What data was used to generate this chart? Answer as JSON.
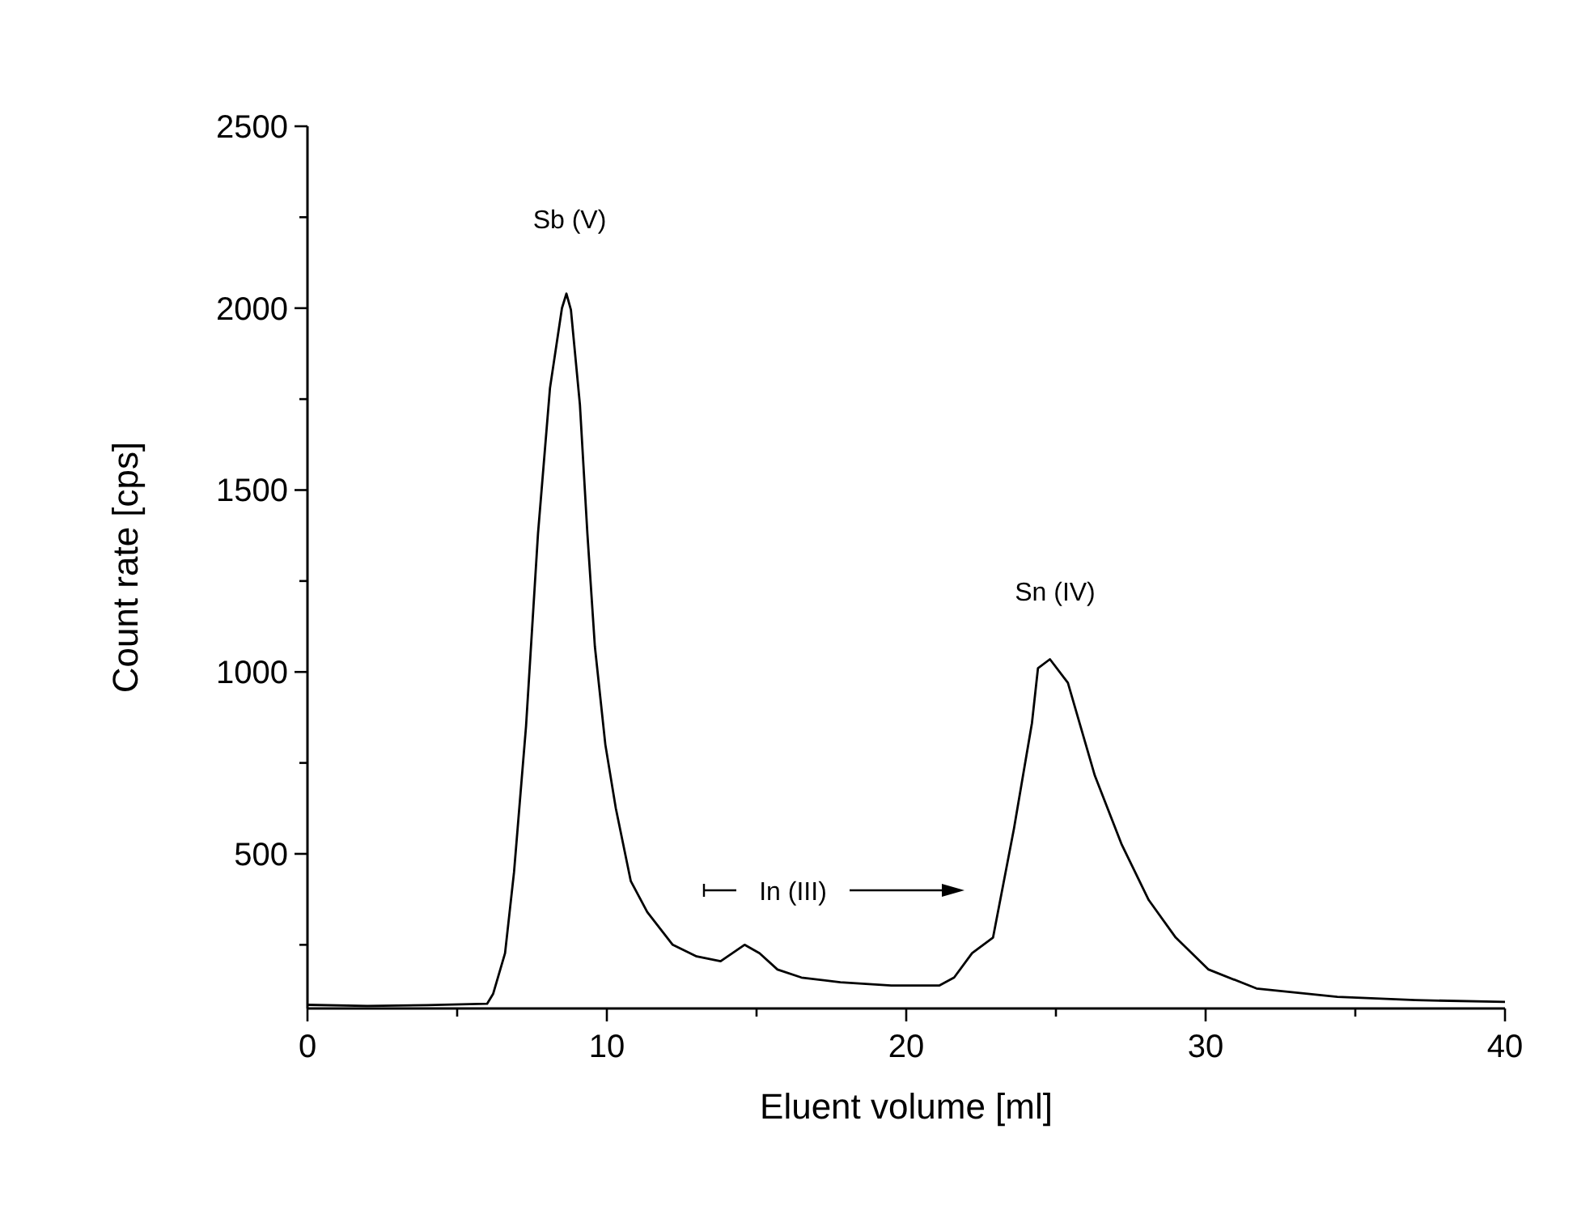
{
  "chart_data": {
    "type": "line",
    "xlabel": "Eluent volume [ml]",
    "ylabel": "Count rate [cps]",
    "xlim": [
      0,
      40
    ],
    "ylim": [
      75,
      2500
    ],
    "xticks": [
      0,
      {
        "value": 5,
        "label": null
      },
      10,
      {
        "value": 15,
        "label": null
      },
      20,
      {
        "value": 25,
        "label": null
      },
      30,
      {
        "value": 35,
        "label": null
      },
      40
    ],
    "yticks": [
      {
        "value": 250,
        "label": null
      },
      500,
      {
        "value": 750,
        "label": null
      },
      1000,
      {
        "value": 1250,
        "label": null
      },
      1500,
      {
        "value": 1750,
        "label": null
      },
      2000,
      {
        "value": 2250,
        "label": null
      },
      2500
    ],
    "grid": false,
    "marker": "none",
    "line_style": "solid",
    "series": [
      {
        "color": "#000000",
        "x": [
          0,
          2,
          4,
          6,
          6.2,
          6.6,
          6.9,
          7.3,
          7.7,
          8.1,
          8.5,
          8.65,
          8.8,
          9.1,
          9.35,
          9.6,
          9.95,
          10.3,
          10.8,
          11.35,
          12.2,
          13,
          13.8,
          14.6,
          15.1,
          15.7,
          16.5,
          17.8,
          19.5,
          21.1,
          21.6,
          22.2,
          22.9,
          23.6,
          24.2,
          24.4,
          24.8,
          25.4,
          26.3,
          27.2,
          28.1,
          29,
          30.1,
          31.7,
          34.4,
          37,
          40
        ],
        "values": [
          85,
          82,
          84,
          88,
          115,
          227,
          450,
          850,
          1380,
          1780,
          2000,
          2040,
          1995,
          1735,
          1380,
          1070,
          800,
          625,
          425,
          340,
          250,
          218,
          205,
          250,
          227,
          182,
          160,
          147,
          138,
          138,
          160,
          227,
          270,
          570,
          860,
          1010,
          1035,
          970,
          715,
          525,
          373,
          270,
          182,
          130,
          107,
          98,
          93
        ]
      }
    ],
    "annotations": [
      "Sb (V)",
      "In (III)",
      "Sn (IV)"
    ]
  }
}
